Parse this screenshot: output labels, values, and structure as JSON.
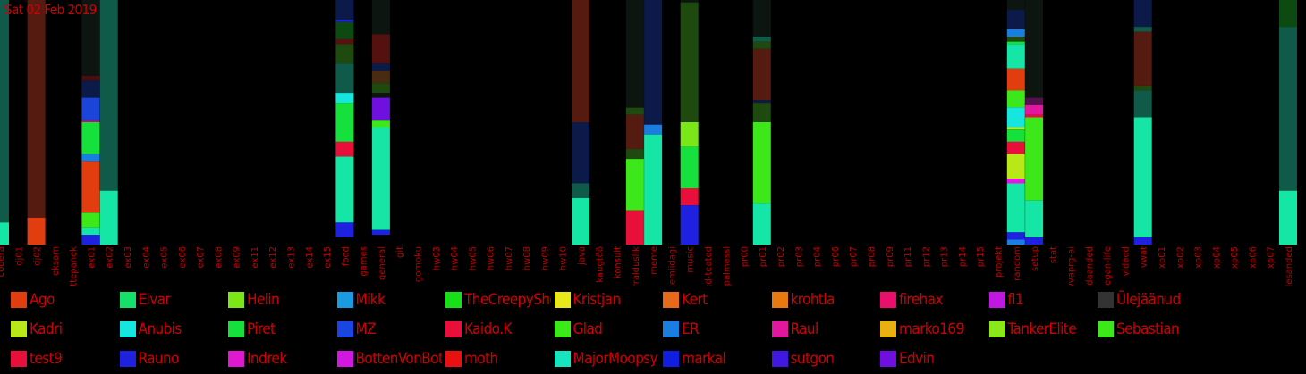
{
  "date": "Sat 02 Feb 2019",
  "chart_data": {
    "type": "bar",
    "stacked": true,
    "value_unit": "fraction",
    "categories": [
      "codera",
      "dj01",
      "dj02",
      "eksam",
      "ettepanek",
      "ex01",
      "ex02",
      "ex03",
      "ex04",
      "ex05",
      "ex06",
      "ex07",
      "ex08",
      "ex09",
      "ex11",
      "ex12",
      "ex13",
      "ex14",
      "ex15",
      "food",
      "games",
      "general",
      "git",
      "gomoku",
      "hw03",
      "hw04",
      "hw05",
      "hw06",
      "hw07",
      "hw08",
      "hw09",
      "hw10",
      "java",
      "kaugtöö",
      "konsult",
      "korralduslik",
      "meme",
      "mittemiidagi",
      "music",
      "olulised-teated",
      "palmessi",
      "pr00",
      "pr01",
      "pr02",
      "pr03",
      "pr04",
      "pr06",
      "pr07",
      "pr08",
      "pr09",
      "pr11",
      "pr12",
      "pr13",
      "pr14",
      "pr15",
      "projekt",
      "random",
      "setup",
      "stat",
      "syvaprg-ai",
      "teadaanded",
      "vegan-life",
      "videod",
      "vwat",
      "xp01",
      "xp02",
      "xp03",
      "xp04",
      "xp05",
      "xp06",
      "xp07",
      "ülesanded"
    ],
    "bars": {
      "codera": [
        {
          "color": "#0f5a48",
          "value": 0.91
        },
        {
          "color": "#15e6a5",
          "value": 0.09
        }
      ],
      "dj02": [
        {
          "color": "#551a10",
          "value": 0.89
        },
        {
          "color": "#e23d0e",
          "value": 0.11
        }
      ],
      "ex01": [
        {
          "color": "#0d1510",
          "value": 0.31
        },
        {
          "color": "#4b0e0e",
          "value": 0.02
        },
        {
          "color": "#0c1a4a",
          "value": 0.07
        },
        {
          "color": "#1a45d8",
          "value": 0.09
        },
        {
          "color": "#b01878",
          "value": 0.01
        },
        {
          "color": "#15e03c",
          "value": 0.13
        },
        {
          "color": "#1a7de0",
          "value": 0.03
        },
        {
          "color": "#e23d0e",
          "value": 0.21
        },
        {
          "color": "#3de81a",
          "value": 0.06
        },
        {
          "color": "#15e6a5",
          "value": 0.03
        },
        {
          "color": "#1e22e0",
          "value": 0.04
        }
      ],
      "ex02": [
        {
          "color": "#0f5a48",
          "value": 0.78
        },
        {
          "color": "#15e6a5",
          "value": 0.22
        }
      ],
      "food": [
        {
          "color": "#0c1a4a",
          "value": 0.08
        },
        {
          "color": "#1e22e0",
          "value": 0.01
        },
        {
          "color": "#0c4a12",
          "value": 0.07
        },
        {
          "color": "#5a1010",
          "value": 0.02
        },
        {
          "color": "#1e4a10",
          "value": 0.08
        },
        {
          "color": "#0f5a48",
          "value": 0.12
        },
        {
          "color": "#15e6e0",
          "value": 0.04
        },
        {
          "color": "#15e03c",
          "value": 0.16
        },
        {
          "color": "#e8103a",
          "value": 0.06
        },
        {
          "color": "#15e6a5",
          "value": 0.27
        },
        {
          "color": "#1e22e0",
          "value": 0.06
        }
      ],
      "general": [
        {
          "color": "#0d1510",
          "value": 0.14
        },
        {
          "color": "#551010",
          "value": 0.12
        },
        {
          "color": "#0c1a4a",
          "value": 0.03
        },
        {
          "color": "#4a2a10",
          "value": 0.05
        },
        {
          "color": "#1e4a10",
          "value": 0.04
        },
        {
          "color": "#0d1510",
          "value": 0.02
        },
        {
          "color": "#7010e0",
          "value": 0.09
        },
        {
          "color": "#3de81a",
          "value": 0.03
        },
        {
          "color": "#15e6a5",
          "value": 0.42
        },
        {
          "color": "#1e22e0",
          "value": 0.02
        }
      ],
      "java": [
        {
          "color": "#551a10",
          "value": 0.5
        },
        {
          "color": "#0c1a4a",
          "value": 0.25
        },
        {
          "color": "#0f5a48",
          "value": 0.06
        },
        {
          "color": "#15e6a5",
          "value": 0.19
        }
      ],
      "korralduslik": [
        {
          "color": "#0d1510",
          "value": 0.44
        },
        {
          "color": "#1e4a10",
          "value": 0.03
        },
        {
          "color": "#551a10",
          "value": 0.14
        },
        {
          "color": "#1e4a10",
          "value": 0.04
        },
        {
          "color": "#3de81a",
          "value": 0.21
        },
        {
          "color": "#e8103a",
          "value": 0.14
        }
      ],
      "meme": [
        {
          "color": "#0c1a4a",
          "value": 0.51
        },
        {
          "color": "#1a7de0",
          "value": 0.04
        },
        {
          "color": "#15e6a5",
          "value": 0.45
        }
      ],
      "music": [
        {
          "color": "#0d1510",
          "value": 0.01
        },
        {
          "color": "#1e4a10",
          "value": 0.49
        },
        {
          "color": "#7ae818",
          "value": 0.1
        },
        {
          "color": "#15e03c",
          "value": 0.17
        },
        {
          "color": "#e8103a",
          "value": 0.07
        },
        {
          "color": "#1e22e0",
          "value": 0.16
        }
      ],
      "pr01": [
        {
          "color": "#0d1510",
          "value": 0.15
        },
        {
          "color": "#0f5a48",
          "value": 0.02
        },
        {
          "color": "#1e4a10",
          "value": 0.03
        },
        {
          "color": "#551a10",
          "value": 0.21
        },
        {
          "color": "#0c1a4a",
          "value": 0.01
        },
        {
          "color": "#1e4a10",
          "value": 0.08
        },
        {
          "color": "#3de81a",
          "value": 0.33
        },
        {
          "color": "#15e6a5",
          "value": 0.17
        }
      ],
      "random": [
        {
          "color": "#0d1510",
          "value": 0.04
        },
        {
          "color": "#0c1a4a",
          "value": 0.08
        },
        {
          "color": "#1a7de0",
          "value": 0.03
        },
        {
          "color": "#1e4a10",
          "value": 0.02
        },
        {
          "color": "#15e03c",
          "value": 0.01
        },
        {
          "color": "#15e6a5",
          "value": 0.1
        },
        {
          "color": "#e23d0e",
          "value": 0.09
        },
        {
          "color": "#3de81a",
          "value": 0.07
        },
        {
          "color": "#15e6e0",
          "value": 0.08
        },
        {
          "color": "#b8e818",
          "value": 0.01
        },
        {
          "color": "#15e03c",
          "value": 0.05
        },
        {
          "color": "#e8103a",
          "value": 0.05
        },
        {
          "color": "#b8e818",
          "value": 0.1
        },
        {
          "color": "#e018e0",
          "value": 0.02
        },
        {
          "color": "#15e6a5",
          "value": 0.2
        },
        {
          "color": "#1e22e0",
          "value": 0.03
        },
        {
          "color": "#1a7de0",
          "value": 0.02
        }
      ],
      "setup": [
        {
          "color": "#0d1510",
          "value": 0.4
        },
        {
          "color": "#551050",
          "value": 0.03
        },
        {
          "color": "#e018a0",
          "value": 0.04
        },
        {
          "color": "#e8103a",
          "value": 0.01
        },
        {
          "color": "#3de81a",
          "value": 0.34
        },
        {
          "color": "#15e6a5",
          "value": 0.15
        },
        {
          "color": "#1e22e0",
          "value": 0.03
        }
      ],
      "vwat": [
        {
          "color": "#0c1a4a",
          "value": 0.11
        },
        {
          "color": "#0f5a48",
          "value": 0.02
        },
        {
          "color": "#551a10",
          "value": 0.22
        },
        {
          "color": "#1e4a10",
          "value": 0.02
        },
        {
          "color": "#0f5a48",
          "value": 0.11
        },
        {
          "color": "#15e6a5",
          "value": 0.49
        },
        {
          "color": "#1e22e0",
          "value": 0.03
        }
      ],
      "ülesanded": [
        {
          "color": "#0c4a12",
          "value": 0.11
        },
        {
          "color": "#0f5a48",
          "value": 0.67
        },
        {
          "color": "#15e6a5",
          "value": 0.22
        }
      ]
    },
    "legend": [
      {
        "name": "Ago",
        "color": "#e23d0e"
      },
      {
        "name": "Elvar",
        "color": "#15e06a"
      },
      {
        "name": "Helin",
        "color": "#7ae818"
      },
      {
        "name": "Mikk",
        "color": "#1a9ae0"
      },
      {
        "name": "TheCreepySheep",
        "color": "#15e018"
      },
      {
        "name": "Kristjan",
        "color": "#e8e818"
      },
      {
        "name": "Kert",
        "color": "#e86a18"
      },
      {
        "name": "krohtla",
        "color": "#e87a10"
      },
      {
        "name": "firehax",
        "color": "#e8106a"
      },
      {
        "name": "fl1",
        "color": "#c018e0"
      },
      {
        "name": "Ülejäänud",
        "color": "#333333"
      },
      {
        "name": "Kadri",
        "color": "#b8e818"
      },
      {
        "name": "Anubis",
        "color": "#15e6e0"
      },
      {
        "name": "Piret",
        "color": "#15e03c"
      },
      {
        "name": "MZ",
        "color": "#1a45e0"
      },
      {
        "name": "Kaido.K",
        "color": "#e8103a"
      },
      {
        "name": "Glad",
        "color": "#3de81a"
      },
      {
        "name": "ER",
        "color": "#1a7de0"
      },
      {
        "name": "Raul",
        "color": "#e018a0"
      },
      {
        "name": "marko169",
        "color": "#e8b010"
      },
      {
        "name": "TankerElite",
        "color": "#8ae818"
      },
      {
        "name": "Sebastian",
        "color": "#3de81a"
      },
      {
        "name": "test9",
        "color": "#e8103a"
      },
      {
        "name": "Rauno",
        "color": "#1e22e0"
      },
      {
        "name": "Indrek",
        "color": "#e018d0"
      },
      {
        "name": "BottenVonBot",
        "color": "#d018e0"
      },
      {
        "name": "moth",
        "color": "#e81010"
      },
      {
        "name": "MajorMoopsy",
        "color": "#15e6c0"
      },
      {
        "name": "markal",
        "color": "#101ee0"
      },
      {
        "name": "sutgon",
        "color": "#4018e0"
      },
      {
        "name": "Edvin",
        "color": "#7010e0"
      }
    ]
  }
}
